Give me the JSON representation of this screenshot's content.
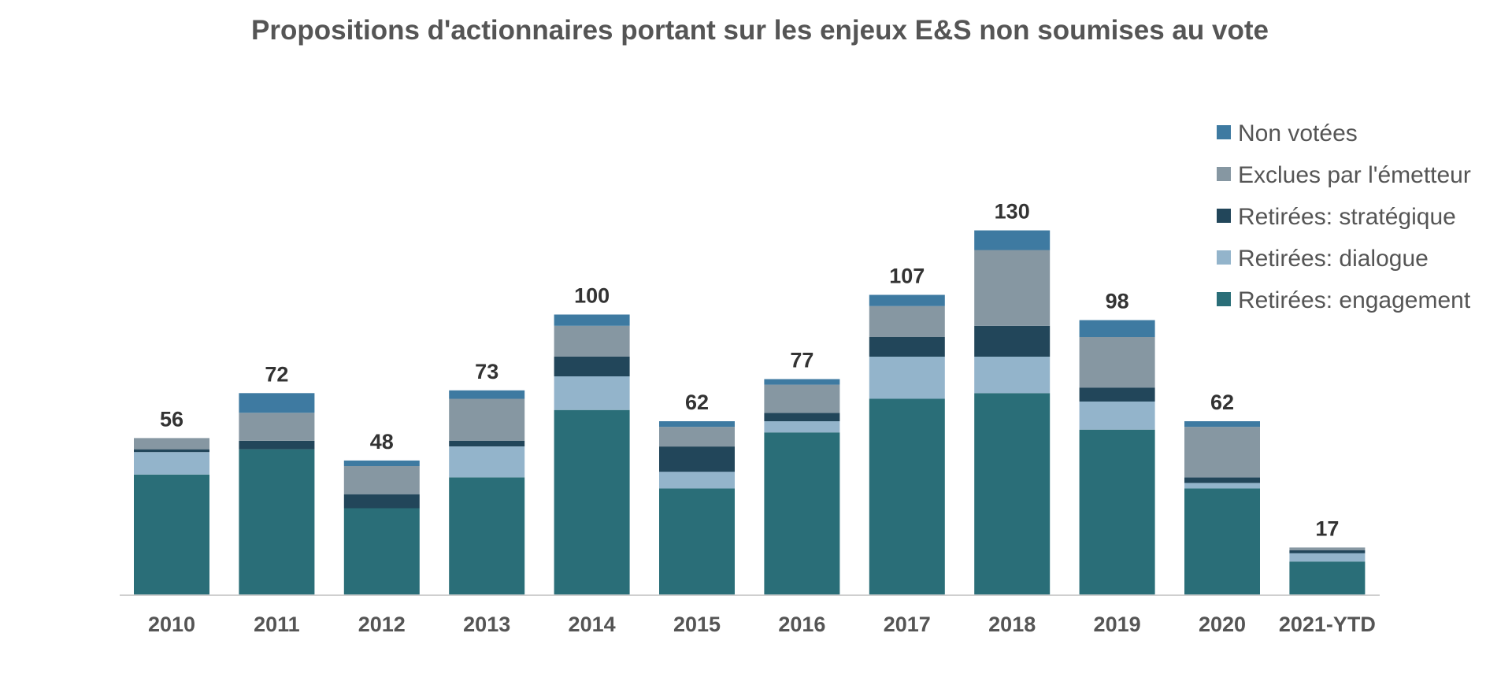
{
  "chart_data": {
    "type": "bar",
    "stacked": true,
    "title": "Propositions d'actionnaires portant sur les enjeux E&S non soumises au vote",
    "xlabel": "",
    "ylabel": "",
    "ylim": [
      0,
      130
    ],
    "grid": false,
    "legend_position": "right",
    "categories": [
      "2010",
      "2011",
      "2012",
      "2013",
      "2014",
      "2015",
      "2016",
      "2017",
      "2018",
      "2019",
      "2020",
      "2021-YTD"
    ],
    "totals": [
      56,
      72,
      48,
      73,
      100,
      62,
      77,
      107,
      130,
      98,
      62,
      17
    ],
    "series": [
      {
        "name": "Retirées: engagement",
        "color": "#2a6e78",
        "values": [
          43,
          52,
          31,
          42,
          66,
          38,
          58,
          70,
          72,
          59,
          38,
          12
        ]
      },
      {
        "name": "Retirées: dialogue",
        "color": "#93b4cb",
        "values": [
          8,
          0,
          0,
          11,
          12,
          6,
          4,
          15,
          13,
          10,
          2,
          3
        ]
      },
      {
        "name": "Retirées: stratégique",
        "color": "#22465a",
        "values": [
          1,
          3,
          5,
          2,
          7,
          9,
          3,
          7,
          11,
          5,
          2,
          1
        ]
      },
      {
        "name": "Exclues par l'émetteur",
        "color": "#8697a2",
        "values": [
          4,
          10,
          10,
          15,
          11,
          7,
          10,
          11,
          27,
          18,
          18,
          1
        ]
      },
      {
        "name": "Non votées",
        "color": "#3e7aa1",
        "values": [
          0,
          7,
          2,
          3,
          4,
          2,
          2,
          4,
          7,
          6,
          2,
          0
        ]
      }
    ],
    "legend": [
      "Non votées",
      "Exclues par l'émetteur",
      "Retirées: stratégique",
      "Retirées: dialogue",
      "Retirées: engagement"
    ]
  }
}
